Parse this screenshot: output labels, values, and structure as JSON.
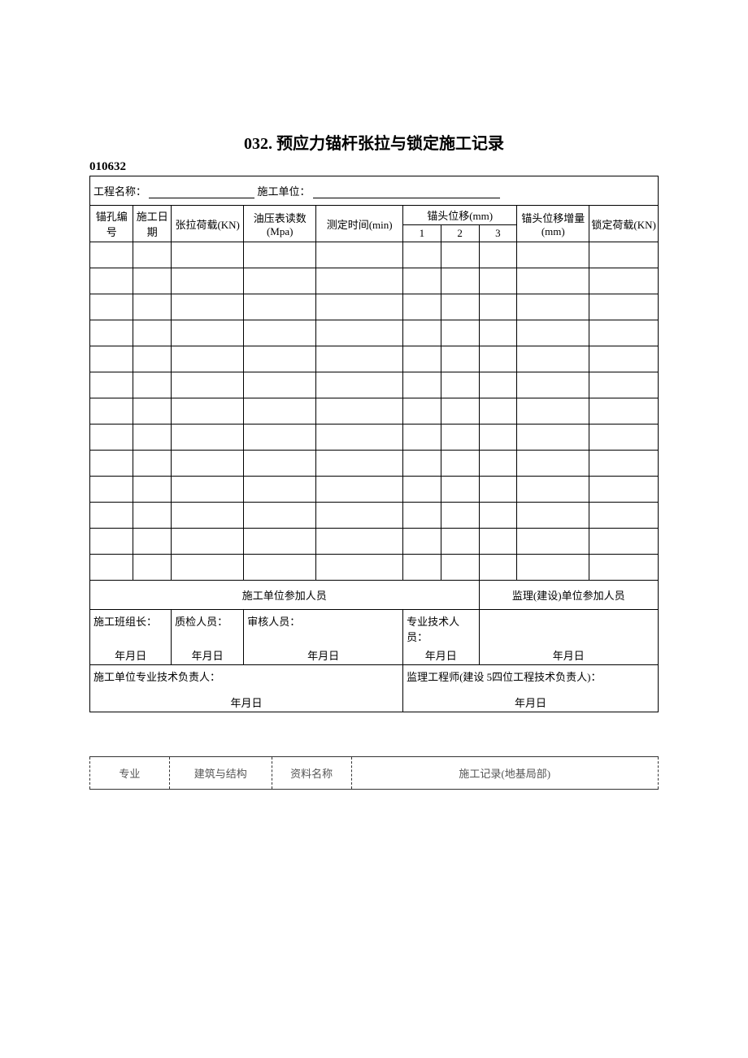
{
  "title_num": "032",
  "title_text": ". 预应力锚杆张拉与锁定施工记录",
  "form_code": "010632",
  "info": {
    "project_label": "工程名称：",
    "unit_label": "施工单位："
  },
  "headers": {
    "col1": "锚孔编号",
    "col2": "施工日期",
    "col3": "张拉荷载(KN)",
    "col4": "油压表读数(Mpa)",
    "col5": "测定时间(min)",
    "col6": "锚头位移(mm)",
    "col6a": "1",
    "col6b": "2",
    "col6c": "3",
    "col7": "锚头位移增量(mm)",
    "col8": "锁定荷载(KN)"
  },
  "footer": {
    "construction_participants": "施工单位参加人员",
    "supervision_participants": "监理(建设)单位参加人员",
    "team_leader": "施工班组长：",
    "qc_personnel": "质检人员：",
    "reviewer": "审核人员：",
    "tech_personnel": "专业技术人员：",
    "date_text": "年月日",
    "construction_tech_lead": "施工单位专业技术负责人：",
    "supervision_engineer": "监理工程师(建设 5四位工程技术负责人)："
  },
  "meta": {
    "label1": "专业",
    "val1": "建筑与结构",
    "label2": "资料名称",
    "val2": "施工记录(地基局部)"
  },
  "data_row_count": 13
}
